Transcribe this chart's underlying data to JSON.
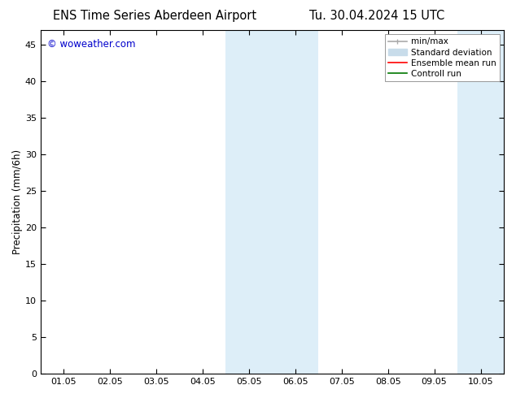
{
  "title_left": "ENS Time Series Aberdeen Airport",
  "title_right": "Tu. 30.04.2024 15 UTC",
  "ylabel": "Precipitation (mm/6h)",
  "watermark": "© woweather.com",
  "ylim": [
    0,
    47
  ],
  "yticks": [
    0,
    5,
    10,
    15,
    20,
    25,
    30,
    35,
    40,
    45
  ],
  "xtick_labels": [
    "01.05",
    "02.05",
    "03.05",
    "04.05",
    "05.05",
    "06.05",
    "07.05",
    "08.05",
    "09.05",
    "10.05"
  ],
  "xtick_positions": [
    0,
    1,
    2,
    3,
    4,
    5,
    6,
    7,
    8,
    9
  ],
  "xlim": [
    -0.5,
    9.5
  ],
  "shaded_regions": [
    {
      "xstart": 3.5,
      "xend": 5.5,
      "color": "#ddeef8"
    },
    {
      "xstart": 8.5,
      "xend": 10.0,
      "color": "#ddeef8"
    }
  ],
  "background_color": "#ffffff",
  "plot_bg_color": "#ffffff",
  "legend_items": [
    {
      "label": "min/max",
      "color": "#aaaaaa",
      "lw": 1.2
    },
    {
      "label": "Standard deviation",
      "color": "#c8dcea",
      "lw": 7
    },
    {
      "label": "Ensemble mean run",
      "color": "#ff0000",
      "lw": 1.2
    },
    {
      "label": "Controll run",
      "color": "#007700",
      "lw": 1.2
    }
  ],
  "watermark_color": "#0000cc",
  "title_fontsize": 10.5,
  "tick_fontsize": 8,
  "ylabel_fontsize": 8.5,
  "legend_fontsize": 7.5
}
